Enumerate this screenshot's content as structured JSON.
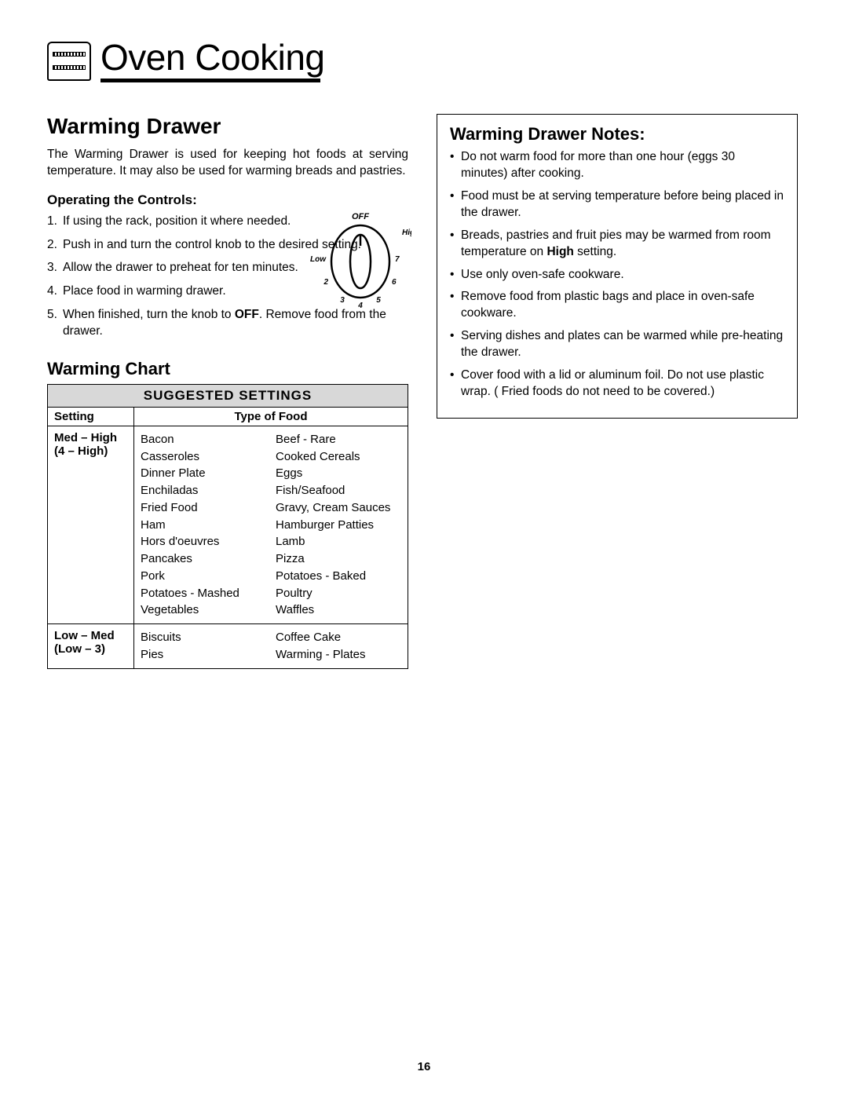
{
  "header": {
    "title": "Oven Cooking"
  },
  "left": {
    "h1": "Warming Drawer",
    "intro": "The Warming Drawer is used for keeping hot foods at serving temperature. It may also be used for warming breads and pastries.",
    "controls_heading": "Operating the Controls:",
    "steps": [
      {
        "text": "If using the rack, position it where needed."
      },
      {
        "text": "Push in and turn the control knob to the desired setting."
      },
      {
        "text": "Allow the drawer to preheat for ten minutes."
      },
      {
        "text": "Place food in warming drawer."
      },
      {
        "prefix": "When finished, turn the knob to ",
        "bold": "OFF",
        "suffix": ". Remove food from the drawer."
      }
    ],
    "chart_heading": "Warming Chart",
    "knob_labels": {
      "off": "OFF",
      "high": "High",
      "low": "Low",
      "n2": "2",
      "n3": "3",
      "n4": "4",
      "n5": "5",
      "n6": "6",
      "n7": "7"
    }
  },
  "table": {
    "title": "SUGGESTED SETTINGS",
    "col1": "Setting",
    "col2": "Type of Food",
    "rows": [
      {
        "setting_l1": "Med – High",
        "setting_l2": "(4 – High)",
        "foods_a": [
          "Bacon",
          "Casseroles",
          "Dinner Plate",
          "Enchiladas",
          "Fried Food",
          "Ham",
          "Hors d'oeuvres",
          "Pancakes",
          "Pork",
          "Potatoes - Mashed",
          "Vegetables"
        ],
        "foods_b": [
          "Beef - Rare",
          "Cooked Cereals",
          "Eggs",
          "Fish/Seafood",
          "Gravy, Cream Sauces",
          "Hamburger Patties",
          "Lamb",
          "Pizza",
          "Potatoes - Baked",
          "Poultry",
          "Waffles"
        ]
      },
      {
        "setting_l1": "Low – Med",
        "setting_l2": "(Low – 3)",
        "foods_a": [
          "Biscuits",
          "Pies"
        ],
        "foods_b": [
          "Coffee Cake",
          "Warming - Plates"
        ]
      }
    ]
  },
  "notes": {
    "heading": "Warming Drawer Notes:",
    "items": [
      {
        "text": "Do not warm food for more than one hour (eggs 30 minutes) after cooking."
      },
      {
        "text": "Food must be at serving temperature before being placed in the drawer."
      },
      {
        "prefix": "Breads, pastries and fruit pies may be warmed from room temperature on ",
        "bold": "High",
        "suffix": " setting."
      },
      {
        "text": "Use only oven-safe cookware."
      },
      {
        "text": "Remove food from plastic bags and place in oven-safe cookware."
      },
      {
        "text": "Serving dishes and plates can be warmed while pre-heating the drawer."
      },
      {
        "text": "Cover food with a lid or aluminum foil. Do not use plastic wrap. ( Fried foods do not need to be covered.)"
      }
    ]
  },
  "page_number": "16"
}
